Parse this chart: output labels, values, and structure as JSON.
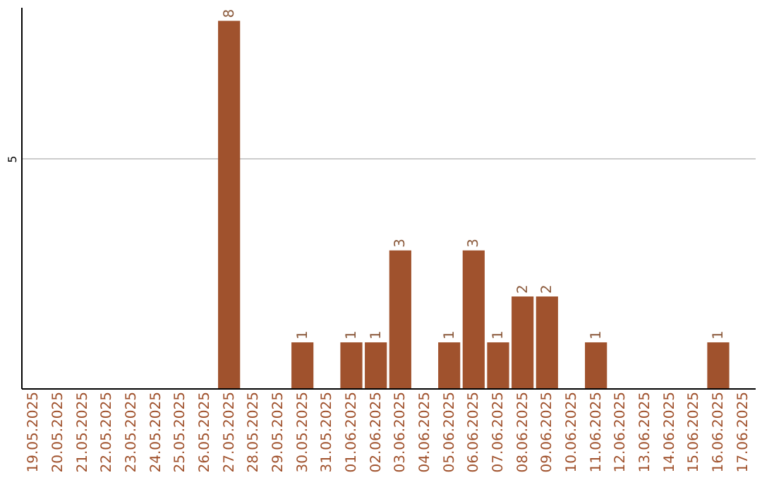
{
  "chart_data": {
    "type": "bar",
    "categories": [
      "19.05.2025",
      "20.05.2025",
      "21.05.2025",
      "22.05.2025",
      "23.05.2025",
      "24.05.2025",
      "25.05.2025",
      "26.05.2025",
      "27.05.2025",
      "28.05.2025",
      "29.05.2025",
      "30.05.2025",
      "31.05.2025",
      "01.06.2025",
      "02.06.2025",
      "03.06.2025",
      "04.06.2025",
      "05.06.2025",
      "06.06.2025",
      "07.06.2025",
      "08.06.2025",
      "09.06.2025",
      "10.06.2025",
      "11.06.2025",
      "12.06.2025",
      "13.06.2025",
      "14.06.2025",
      "15.06.2025",
      "16.06.2025",
      "17.06.2025"
    ],
    "values": [
      0,
      0,
      0,
      0,
      0,
      0,
      0,
      0,
      8,
      0,
      0,
      1,
      0,
      1,
      1,
      3,
      0,
      1,
      3,
      1,
      2,
      2,
      0,
      1,
      0,
      0,
      0,
      0,
      1,
      0
    ],
    "value_labels": [
      null,
      null,
      null,
      null,
      null,
      null,
      null,
      null,
      "8",
      null,
      null,
      "1",
      null,
      "1",
      "1",
      "3",
      null,
      "1",
      "3",
      "1",
      "2",
      "2",
      null,
      "1",
      null,
      null,
      null,
      null,
      "1",
      null
    ],
    "color": "#a0522d",
    "ylim": [
      0,
      8.3
    ],
    "yticks": [
      5
    ],
    "grid": "y"
  }
}
